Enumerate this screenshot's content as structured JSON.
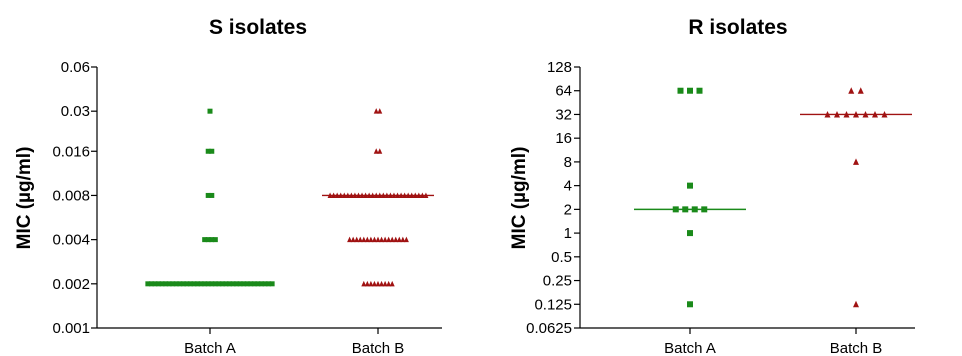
{
  "chart_data": [
    {
      "type": "scatter",
      "title": "S isolates",
      "xlabel": "",
      "ylabel": "MIC (µg/ml)",
      "y_scale": "log2",
      "ylim": [
        0.001,
        0.06
      ],
      "yticks": [
        0.001,
        0.002,
        0.004,
        0.008,
        0.016,
        0.03,
        0.06
      ],
      "ytick_labels": [
        "0.001",
        "0.002",
        "0.004",
        "0.008",
        "0.016",
        "0.03",
        "0.06"
      ],
      "categories": [
        "Batch A",
        "Batch B"
      ],
      "grid": false,
      "series": [
        {
          "category": "Batch A",
          "marker": "square",
          "color": "#1a8a1a",
          "median": 0.002,
          "groups": [
            {
              "value": 0.03,
              "count": 1
            },
            {
              "value": 0.016,
              "count": 2
            },
            {
              "value": 0.008,
              "count": 2
            },
            {
              "value": 0.004,
              "count": 4
            },
            {
              "value": 0.002,
              "count": 36
            }
          ]
        },
        {
          "category": "Batch B",
          "marker": "triangle",
          "color": "#a01212",
          "median": 0.008,
          "groups": [
            {
              "value": 0.03,
              "count": 2
            },
            {
              "value": 0.016,
              "count": 2
            },
            {
              "value": 0.008,
              "count": 28
            },
            {
              "value": 0.004,
              "count": 17
            },
            {
              "value": 0.002,
              "count": 9
            }
          ]
        }
      ]
    },
    {
      "type": "scatter",
      "title": "R isolates",
      "xlabel": "",
      "ylabel": "MIC (µg/ml)",
      "y_scale": "log2",
      "ylim": [
        0.0625,
        128
      ],
      "yticks": [
        0.0625,
        0.125,
        0.25,
        0.5,
        1,
        2,
        4,
        8,
        16,
        32,
        64,
        128
      ],
      "ytick_labels": [
        "0.0625",
        "0.125",
        "0.25",
        "0.5",
        "1",
        "2",
        "4",
        "8",
        "16",
        "32",
        "64",
        "128"
      ],
      "categories": [
        "Batch A",
        "Batch B"
      ],
      "grid": false,
      "series": [
        {
          "category": "Batch A",
          "marker": "square",
          "color": "#1a8a1a",
          "median": 2,
          "groups": [
            {
              "value": 64,
              "count": 3
            },
            {
              "value": 4,
              "count": 1
            },
            {
              "value": 2,
              "count": 4
            },
            {
              "value": 1,
              "count": 1
            },
            {
              "value": 0.125,
              "count": 1
            }
          ]
        },
        {
          "category": "Batch B",
          "marker": "triangle",
          "color": "#a01212",
          "median": 32,
          "groups": [
            {
              "value": 64,
              "count": 2
            },
            {
              "value": 32,
              "count": 7
            },
            {
              "value": 8,
              "count": 1
            },
            {
              "value": 0.125,
              "count": 1
            }
          ]
        }
      ]
    }
  ]
}
